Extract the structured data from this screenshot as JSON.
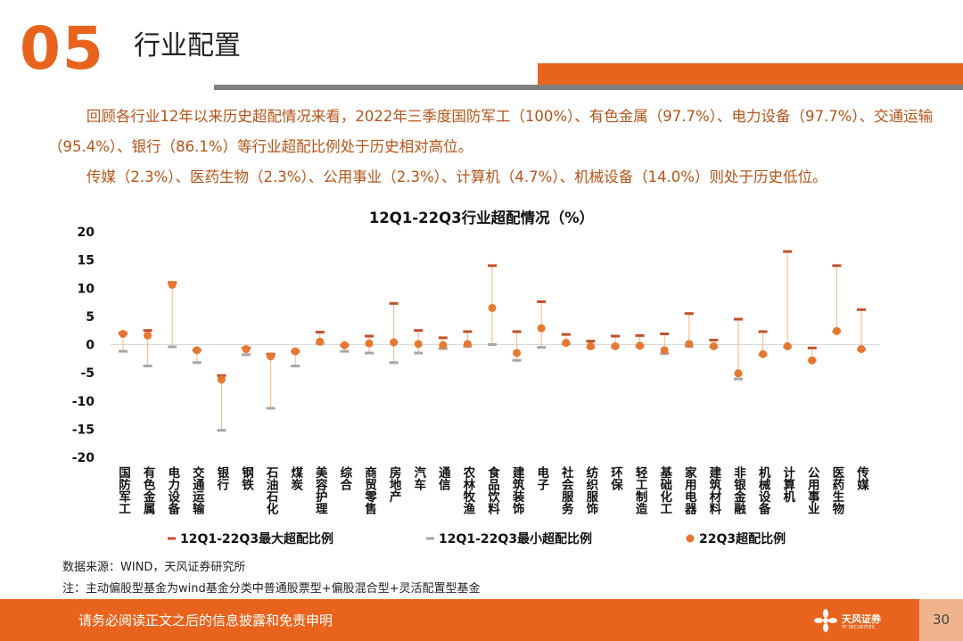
{
  "header": {
    "section_number": "05",
    "title": "行业配置"
  },
  "intro": {
    "line1": "回顾各行业12年以来历史超配情况来看，2022年三季度国防军工（100%）、有色金属（97.7%）、电力设备（97.7%）、交通运输（95.4%）、银行（86.1%）等行业超配比例处于历史相对高位。",
    "line2": "传媒（2.3%）、医药生物（2.3%）、公用事业（2.3%）、计算机（4.7%）、机械设备（14.0%）则处于历史低位。"
  },
  "chart_data": {
    "type": "line",
    "title": "12Q1-22Q3行业超配情况（%）",
    "ylim": [
      -20,
      20
    ],
    "yticks": [
      20,
      15,
      10,
      5,
      0,
      -5,
      -10,
      -15,
      -20
    ],
    "categories": [
      "国防军工",
      "有色金属",
      "电力设备",
      "交通运输",
      "银行",
      "钢铁",
      "石油石化",
      "煤炭",
      "美容护理",
      "综合",
      "商贸零售",
      "房地产",
      "汽车",
      "通信",
      "农林牧渔",
      "食品饮料",
      "建筑装饰",
      "电子",
      "社会服务",
      "纺织服饰",
      "环保",
      "轻工制造",
      "基础化工",
      "家用电器",
      "建筑材料",
      "非银金融",
      "机械设备",
      "计算机",
      "公用事业",
      "医药生物",
      "传媒"
    ],
    "series": [
      {
        "name": "12Q1-22Q3最大超配比例",
        "color": "#c0502a",
        "values": [
          2,
          2.5,
          11,
          -1,
          -5.5,
          -0.6,
          -1.7,
          -1.2,
          2.2,
          -0.1,
          1.5,
          7.3,
          2.5,
          1.2,
          2.3,
          14,
          2.3,
          7.6,
          1.8,
          0.6,
          1.5,
          1.6,
          1.9,
          5.5,
          0.8,
          4.5,
          2.3,
          16.5,
          -0.6,
          14,
          6.2
        ]
      },
      {
        "name": "12Q1-22Q3最小超配比例",
        "color": "#a6a6a6",
        "values": [
          -1.2,
          -3.8,
          -0.4,
          -3.2,
          -15.2,
          -1.8,
          -11.3,
          -3.8,
          0.2,
          -1.2,
          -1.5,
          -3.2,
          -1.5,
          -0.7,
          -0.3,
          0,
          -2.8,
          -0.5,
          0.1,
          -0.5,
          -0.4,
          -0.3,
          -1.6,
          -0.3,
          -0.4,
          -6.1,
          -1.8,
          -0.4,
          -2.8,
          2.3,
          -0.9
        ]
      },
      {
        "name": "22Q3超配比例",
        "color": "#e87830",
        "values": [
          1.9,
          1.6,
          10.6,
          -1,
          -6.2,
          -0.8,
          -2.1,
          -1.2,
          0.5,
          -0.1,
          0.2,
          0.4,
          0.1,
          -0.1,
          0.1,
          6.5,
          -1.5,
          2.9,
          0.3,
          -0.3,
          -0.3,
          -0.2,
          -1,
          0.1,
          -0.3,
          -5.1,
          -1.7,
          -0.3,
          -2.8,
          2.4,
          -0.8
        ]
      }
    ]
  },
  "notes": {
    "source": "数据来源：WIND，天风证券研究所",
    "note": "注：主动偏股型基金为wind基金分类中普通股票型+偏股混合型+灵活配置型基金"
  },
  "footer": {
    "disclaimer": "请务必阅读正文之后的信息披露和免责申明",
    "logo_name": "天风证券",
    "logo_sub": "TF SECURITIES",
    "page": "30"
  },
  "colors": {
    "accent": "#e8641e",
    "gray_bar": "#7f7f7f",
    "text_highlight": "#b4541a"
  },
  "icons": {
    "logo": "tf-securities-logo-icon"
  }
}
